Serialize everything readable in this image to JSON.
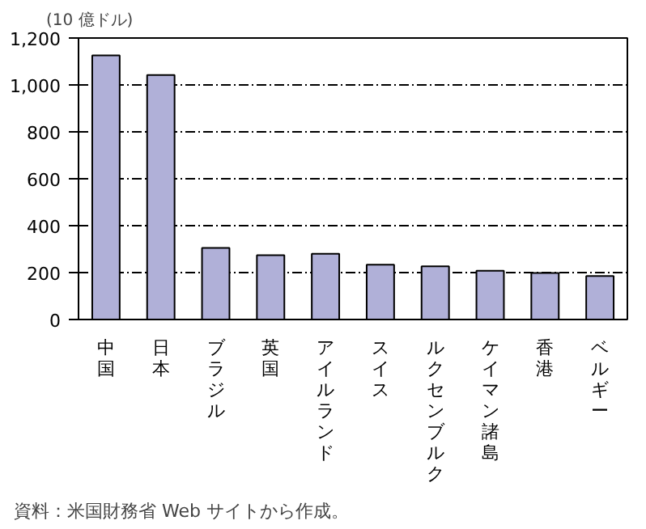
{
  "chart_data": {
    "type": "bar",
    "ylabel": "(10 億ドル)",
    "categories": [
      "中国",
      "日本",
      "ブラジル",
      "英国",
      "アイルランド",
      "スイス",
      "ルクセンブルク",
      "ケイマン諸島",
      "香港",
      "ベルギー"
    ],
    "values": [
      1126,
      1042,
      305,
      274,
      280,
      234,
      227,
      208,
      198,
      185
    ],
    "color": "#b0b0d8",
    "ylim": [
      0,
      1200
    ],
    "yticks": [
      0,
      {
        "value": 200,
        "label": "200"
      },
      {
        "value": 400,
        "label": "400"
      },
      {
        "value": 600,
        "label": "600"
      },
      {
        "value": 800,
        "label": "800"
      },
      {
        "value": 1000,
        "label": "1,000"
      },
      {
        "value": 1200,
        "label": "1,200"
      }
    ],
    "grid": "y",
    "annotations": [
      "資料：米国財務省 Web サイトから作成。"
    ]
  }
}
